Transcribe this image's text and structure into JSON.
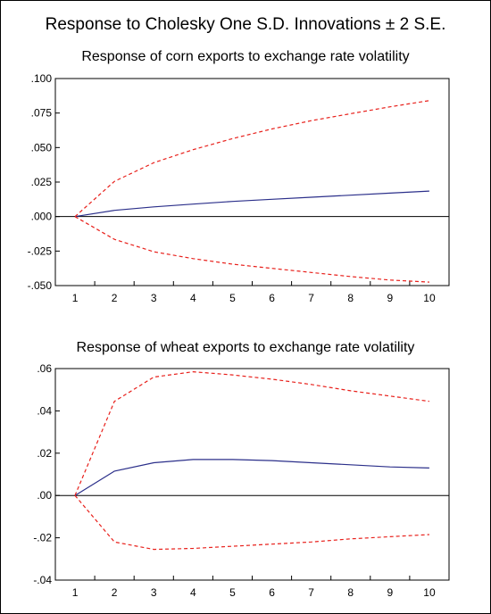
{
  "title": "Response to Cholesky One S.D. Innovations ± 2 S.E.",
  "chart_data": [
    {
      "type": "line",
      "title": "Response of corn exports to exchange rate volatility",
      "x": [
        1,
        2,
        3,
        4,
        5,
        6,
        7,
        8,
        9,
        10
      ],
      "ylim": [
        -0.05,
        0.1
      ],
      "y_ticks": [
        ".100",
        ".075",
        ".050",
        ".025",
        ".000",
        "-.025",
        "-.050"
      ],
      "y_tick_values": [
        0.1,
        0.075,
        0.05,
        0.025,
        0.0,
        -0.025,
        -0.05
      ],
      "x_ticks": [
        "1",
        "2",
        "3",
        "4",
        "5",
        "6",
        "7",
        "8",
        "9",
        "10"
      ],
      "grid": false,
      "series": [
        {
          "role": "response",
          "color": "#2b2f8a",
          "style": "solid",
          "values": [
            0.0,
            0.0045,
            0.007,
            0.009,
            0.011,
            0.0125,
            0.014,
            0.0155,
            0.017,
            0.0185
          ]
        },
        {
          "role": "upper",
          "color": "#e8201b",
          "style": "dashed",
          "values": [
            0.0,
            0.0255,
            0.039,
            0.0485,
            0.0565,
            0.0635,
            0.0695,
            0.0745,
            0.0795,
            0.084
          ]
        },
        {
          "role": "lower",
          "color": "#e8201b",
          "style": "dashed",
          "values": [
            0.0,
            -0.0165,
            -0.0255,
            -0.0305,
            -0.0345,
            -0.0375,
            -0.0405,
            -0.0435,
            -0.046,
            -0.0475
          ]
        }
      ]
    },
    {
      "type": "line",
      "title": "Response of wheat exports to exchange rate volatility",
      "x": [
        1,
        2,
        3,
        4,
        5,
        6,
        7,
        8,
        9,
        10
      ],
      "ylim": [
        -0.04,
        0.06
      ],
      "y_ticks": [
        ".06",
        ".04",
        ".02",
        ".00",
        "-.02",
        "-.04"
      ],
      "y_tick_values": [
        0.06,
        0.04,
        0.02,
        0.0,
        -0.02,
        -0.04
      ],
      "x_ticks": [
        "1",
        "2",
        "3",
        "4",
        "5",
        "6",
        "7",
        "8",
        "9",
        "10"
      ],
      "grid": false,
      "series": [
        {
          "role": "response",
          "color": "#2b2f8a",
          "style": "solid",
          "values": [
            0.0,
            0.0115,
            0.0155,
            0.017,
            0.017,
            0.0165,
            0.0155,
            0.0145,
            0.0135,
            0.013
          ]
        },
        {
          "role": "upper",
          "color": "#e8201b",
          "style": "dashed",
          "values": [
            0.0,
            0.0445,
            0.056,
            0.0585,
            0.057,
            0.055,
            0.0525,
            0.0495,
            0.047,
            0.0445
          ]
        },
        {
          "role": "lower",
          "color": "#e8201b",
          "style": "dashed",
          "values": [
            0.0,
            -0.022,
            -0.0255,
            -0.025,
            -0.024,
            -0.023,
            -0.022,
            -0.0205,
            -0.0195,
            -0.0185
          ]
        }
      ]
    }
  ]
}
